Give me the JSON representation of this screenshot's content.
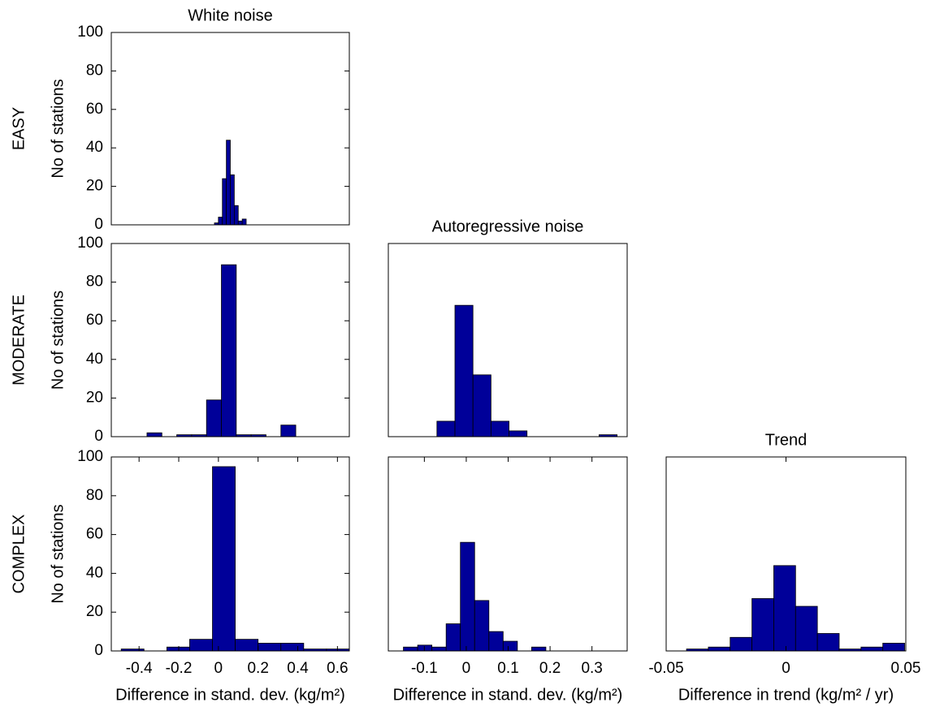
{
  "chart_data": [
    {
      "type": "histogram",
      "title": "White noise",
      "row_label": "EASY",
      "ylabel": "No of stations",
      "color": "#000099",
      "bins": [
        -0.02,
        0,
        0.02,
        0.04,
        0.06,
        0.08,
        0.1,
        0.12,
        0.14
      ],
      "counts": [
        1,
        4,
        24,
        44,
        26,
        10,
        2,
        3
      ],
      "xlim": [
        -0.54,
        0.66
      ],
      "ylim": [
        0,
        100
      ],
      "yticks": [
        0,
        20,
        40,
        60,
        80,
        100
      ]
    },
    {
      "type": "histogram",
      "row_label": "MODERATE",
      "ylabel": "No of stations",
      "color": "#000099",
      "bins": [
        -0.36,
        -0.285,
        -0.21,
        -0.135,
        -0.06,
        0.015,
        0.09,
        0.165,
        0.24,
        0.315,
        0.39
      ],
      "counts": [
        2,
        0,
        1,
        1,
        19,
        89,
        1,
        1,
        0,
        6
      ],
      "xlim": [
        -0.54,
        0.66
      ],
      "ylim": [
        0,
        100
      ],
      "yticks": [
        0,
        20,
        40,
        60,
        80,
        100
      ]
    },
    {
      "type": "histogram",
      "title": "Autoregressive noise",
      "color": "#000099",
      "bins": [
        -0.07,
        -0.027,
        0.016,
        0.059,
        0.102,
        0.145,
        0.188,
        0.231,
        0.274,
        0.317,
        0.36
      ],
      "counts": [
        8,
        68,
        32,
        8,
        3,
        0,
        0,
        0,
        0,
        1
      ],
      "xlim": [
        -0.186,
        0.384
      ],
      "ylim": [
        0,
        100
      ]
    },
    {
      "type": "histogram",
      "row_label": "COMPLEX",
      "ylabel": "No of stations",
      "xlabel": "Difference in stand. dev. (kg/m²)",
      "color": "#000099",
      "bins": [
        -0.49,
        -0.375,
        -0.26,
        -0.145,
        -0.03,
        0.085,
        0.2,
        0.315,
        0.43,
        0.545,
        0.66
      ],
      "counts": [
        1,
        0,
        2,
        6,
        95,
        6,
        4,
        4,
        1,
        1
      ],
      "xlim": [
        -0.54,
        0.66
      ],
      "ylim": [
        0,
        100
      ],
      "xticks": [
        -0.4,
        -0.2,
        0,
        0.2,
        0.4,
        0.6
      ],
      "yticks": [
        0,
        20,
        40,
        60,
        80,
        100
      ]
    },
    {
      "type": "histogram",
      "xlabel": "Difference in stand. dev. (kg/m²)",
      "color": "#000099",
      "bins": [
        -0.15,
        -0.116,
        -0.082,
        -0.048,
        -0.014,
        0.02,
        0.054,
        0.088,
        0.122,
        0.156,
        0.19
      ],
      "counts": [
        2,
        3,
        2,
        14,
        56,
        26,
        10,
        5,
        0,
        2
      ],
      "xlim": [
        -0.186,
        0.384
      ],
      "ylim": [
        0,
        100
      ],
      "xticks": [
        -0.1,
        0,
        0.1,
        0.2,
        0.3
      ]
    },
    {
      "type": "histogram",
      "title": "Trend",
      "xlabel": "Difference in trend (kg/m² / yr)",
      "color": "#000099",
      "bins": [
        -0.0415,
        -0.0324,
        -0.0233,
        -0.0142,
        -0.0051,
        0.004,
        0.0131,
        0.0222,
        0.0313,
        0.0404,
        0.0495
      ],
      "counts": [
        1,
        2,
        7,
        27,
        44,
        23,
        9,
        1,
        2,
        4
      ],
      "xlim": [
        -0.05,
        0.05
      ],
      "ylim": [
        0,
        100
      ],
      "xticks": [
        -0.05,
        0,
        0.05
      ]
    }
  ]
}
